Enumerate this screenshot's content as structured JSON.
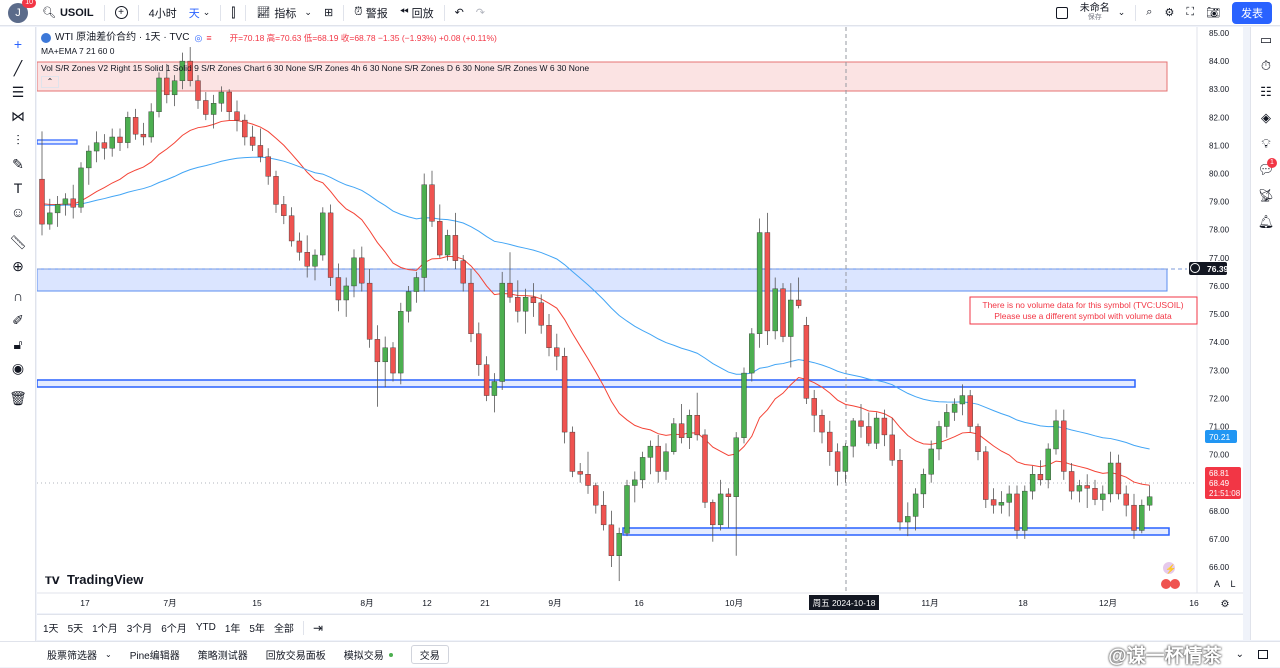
{
  "topbar": {
    "avatar_letter": "J",
    "avatar_badge": "10",
    "symbol": "USOIL",
    "add_symbol_label": "+",
    "interval_label": "4小时",
    "interval_active": "天",
    "indicators_label": "指标",
    "alerts_label": "警报",
    "replay_label": "回放",
    "layout_name": "未命名",
    "layout_status": "保存",
    "publish_label": "发表"
  },
  "legend": {
    "symbol_line": "WTI 原油差价合约 · 1天 · TVC",
    "ohlc_label": "开=70.18 高=70.63 低=68.19 收=68.78 −1.35 (−1.93%) +0.08 (+0.11%)",
    "ma_label": "MA+EMA 7 21 60 0",
    "indicator_label": "Vol S/R Zones V2 Right 15 Solid 1 Solid 9 S/R Zones Chart 6 30 None S/R Zones 4h 6 30 None S/R Zones D 6 30 None S/R Zones W 6 30 None"
  },
  "volume_warning": {
    "line1": "There is no volume data for this symbol (TVC:USOIL)",
    "line2": "Please use a different symbol with volume data"
  },
  "watermark": "TradingView",
  "price_labels": {
    "zone_price": "76.39",
    "ema60_price": "70.21",
    "last_close": "68.81",
    "last_price": "68.49",
    "countdown": "21:51:08"
  },
  "crosshair_date": "周五 2024-10-18",
  "range_buttons": [
    "1天",
    "5天",
    "1个月",
    "3个月",
    "6个月",
    "YTD",
    "1年",
    "5年",
    "全部"
  ],
  "bottom_tabs": [
    "股票筛选器",
    "Pine编辑器",
    "策略测试器",
    "回放交易面板",
    "模拟交易",
    "交易"
  ],
  "bottom_right_watermark": "@谋一杯情茶",
  "scale_labels": {
    "auto": "A",
    "log": "L"
  },
  "colors": {
    "up": "#22ab94",
    "down": "#f23645",
    "candle_up": "#4caf50",
    "candle_down": "#ef5350",
    "ema_short": "#f44336",
    "ema_long": "#42a5f5",
    "zone_red": "#f8d7d7",
    "zone_blue": "#dbe5ff",
    "accent": "#2962ff"
  },
  "chart_data": {
    "type": "candlestick",
    "y_axis_ticks": [
      "85.00",
      "84.00",
      "83.00",
      "82.00",
      "81.00",
      "80.00",
      "79.00",
      "78.00",
      "77.00",
      "76.00",
      "75.00",
      "74.00",
      "73.00",
      "72.00",
      "71.00",
      "70.00",
      "69.00",
      "68.00",
      "67.00",
      "66.00"
    ],
    "x_axis_ticks": [
      "17",
      "7月",
      "15",
      "8月",
      "12",
      "21",
      "9月",
      "16",
      "10月",
      "11月",
      "18",
      "12月",
      "16"
    ],
    "ylim": [
      65.3,
      85.2
    ],
    "candles": [
      [
        79.8,
        81.5,
        77.8,
        78.2
      ],
      [
        78.2,
        79.1,
        78.0,
        78.6
      ],
      [
        78.6,
        79.2,
        78.1,
        78.9
      ],
      [
        78.9,
        79.3,
        78.5,
        79.1
      ],
      [
        79.1,
        79.6,
        78.4,
        78.8
      ],
      [
        78.8,
        80.4,
        78.6,
        80.2
      ],
      [
        80.2,
        81.0,
        79.6,
        80.8
      ],
      [
        80.8,
        81.5,
        80.4,
        81.1
      ],
      [
        81.1,
        81.4,
        80.5,
        80.9
      ],
      [
        80.9,
        81.6,
        80.6,
        81.3
      ],
      [
        81.3,
        81.6,
        80.8,
        81.1
      ],
      [
        81.1,
        82.2,
        80.9,
        82.0
      ],
      [
        82.0,
        82.3,
        81.2,
        81.4
      ],
      [
        81.4,
        81.8,
        81.0,
        81.3
      ],
      [
        81.3,
        82.5,
        81.1,
        82.2
      ],
      [
        82.2,
        83.6,
        82.0,
        83.4
      ],
      [
        83.4,
        83.9,
        82.5,
        82.8
      ],
      [
        82.8,
        83.5,
        82.4,
        83.3
      ],
      [
        83.3,
        84.3,
        83.0,
        84.0
      ],
      [
        84.0,
        84.5,
        83.1,
        83.3
      ],
      [
        83.3,
        83.5,
        82.3,
        82.6
      ],
      [
        82.6,
        82.9,
        81.9,
        82.1
      ],
      [
        82.1,
        82.8,
        81.6,
        82.5
      ],
      [
        82.5,
        83.1,
        82.2,
        82.9
      ],
      [
        82.9,
        83.0,
        81.9,
        82.2
      ],
      [
        82.2,
        82.6,
        81.5,
        81.9
      ],
      [
        81.9,
        82.1,
        81.0,
        81.3
      ],
      [
        81.3,
        81.7,
        80.8,
        81.0
      ],
      [
        81.0,
        81.6,
        80.4,
        80.6
      ],
      [
        80.6,
        80.9,
        79.6,
        79.9
      ],
      [
        79.9,
        80.1,
        78.6,
        78.9
      ],
      [
        78.9,
        79.2,
        78.2,
        78.5
      ],
      [
        78.5,
        78.8,
        77.4,
        77.6
      ],
      [
        77.6,
        77.9,
        76.9,
        77.2
      ],
      [
        77.2,
        77.8,
        76.3,
        76.7
      ],
      [
        76.7,
        77.3,
        76.2,
        77.1
      ],
      [
        77.1,
        78.8,
        76.9,
        78.6
      ],
      [
        78.6,
        78.9,
        76.0,
        76.3
      ],
      [
        76.3,
        76.8,
        75.1,
        75.5
      ],
      [
        75.5,
        76.3,
        74.9,
        76.0
      ],
      [
        76.0,
        77.3,
        75.6,
        77.0
      ],
      [
        77.0,
        77.4,
        75.8,
        76.1
      ],
      [
        76.1,
        76.6,
        73.8,
        74.1
      ],
      [
        74.1,
        74.6,
        71.7,
        73.3
      ],
      [
        73.3,
        74.2,
        72.4,
        73.8
      ],
      [
        73.8,
        74.0,
        72.6,
        72.9
      ],
      [
        72.9,
        75.4,
        72.5,
        75.1
      ],
      [
        75.1,
        76.0,
        74.7,
        75.8
      ],
      [
        75.8,
        76.5,
        75.4,
        76.3
      ],
      [
        76.3,
        80.0,
        75.8,
        79.6
      ],
      [
        79.6,
        80.1,
        78.1,
        78.3
      ],
      [
        78.3,
        78.9,
        77.0,
        77.1
      ],
      [
        77.1,
        78.0,
        76.9,
        77.8
      ],
      [
        77.8,
        78.6,
        76.6,
        76.9
      ],
      [
        76.9,
        77.1,
        75.8,
        76.1
      ],
      [
        76.1,
        76.6,
        74.0,
        74.3
      ],
      [
        74.3,
        74.7,
        72.8,
        73.2
      ],
      [
        73.2,
        73.5,
        71.9,
        72.1
      ],
      [
        72.1,
        72.9,
        71.5,
        72.6
      ],
      [
        72.6,
        76.5,
        72.3,
        76.1
      ],
      [
        76.1,
        77.2,
        75.4,
        75.6
      ],
      [
        75.6,
        76.2,
        74.7,
        75.1
      ],
      [
        75.1,
        75.9,
        74.3,
        75.6
      ],
      [
        75.6,
        76.1,
        74.9,
        75.4
      ],
      [
        75.4,
        75.7,
        74.3,
        74.6
      ],
      [
        74.6,
        75.0,
        73.5,
        73.8
      ],
      [
        73.8,
        74.3,
        73.0,
        73.5
      ],
      [
        73.5,
        73.8,
        70.4,
        70.8
      ],
      [
        70.8,
        71.0,
        69.2,
        69.4
      ],
      [
        69.4,
        69.7,
        69.0,
        69.3
      ],
      [
        69.3,
        70.1,
        68.6,
        68.9
      ],
      [
        68.9,
        69.0,
        67.9,
        68.2
      ],
      [
        68.2,
        68.7,
        67.3,
        67.5
      ],
      [
        67.5,
        68.0,
        66.0,
        66.4
      ],
      [
        66.4,
        67.4,
        65.5,
        67.2
      ],
      [
        67.2,
        69.1,
        67.1,
        68.9
      ],
      [
        68.9,
        69.4,
        68.3,
        69.1
      ],
      [
        69.1,
        70.1,
        68.8,
        69.9
      ],
      [
        69.9,
        70.5,
        69.3,
        70.3
      ],
      [
        70.3,
        70.7,
        69.0,
        69.4
      ],
      [
        69.4,
        70.4,
        69.1,
        70.1
      ],
      [
        70.1,
        71.3,
        70.0,
        71.1
      ],
      [
        71.1,
        71.8,
        70.4,
        70.6
      ],
      [
        70.6,
        71.6,
        70.2,
        71.4
      ],
      [
        71.4,
        72.2,
        70.5,
        70.7
      ],
      [
        70.7,
        70.9,
        68.1,
        68.3
      ],
      [
        68.3,
        68.4,
        66.9,
        67.5
      ],
      [
        67.5,
        69.1,
        67.3,
        68.6
      ],
      [
        68.6,
        68.8,
        67.4,
        68.5
      ],
      [
        68.5,
        70.8,
        66.4,
        70.6
      ],
      [
        70.6,
        73.1,
        70.4,
        72.9
      ],
      [
        72.9,
        74.5,
        72.6,
        74.3
      ],
      [
        74.3,
        78.4,
        73.8,
        77.9
      ],
      [
        77.9,
        78.6,
        73.9,
        74.4
      ],
      [
        74.4,
        76.3,
        74.1,
        75.9
      ],
      [
        75.9,
        76.1,
        74.0,
        74.2
      ],
      [
        74.2,
        76.1,
        73.1,
        75.5
      ],
      [
        75.5,
        76.3,
        75.2,
        75.3
      ],
      [
        74.6,
        74.9,
        71.8,
        72.0
      ],
      [
        72.0,
        72.3,
        70.8,
        71.4
      ],
      [
        71.4,
        71.6,
        70.4,
        70.8
      ],
      [
        70.8,
        71.2,
        69.6,
        70.1
      ],
      [
        70.1,
        70.4,
        68.9,
        69.4
      ],
      [
        69.4,
        70.4,
        69.0,
        70.3
      ],
      [
        70.3,
        71.3,
        69.9,
        71.2
      ],
      [
        71.2,
        71.8,
        70.6,
        71.0
      ],
      [
        71.0,
        71.5,
        70.3,
        70.4
      ],
      [
        70.4,
        71.5,
        70.2,
        71.3
      ],
      [
        71.3,
        71.6,
        70.3,
        70.7
      ],
      [
        70.7,
        71.3,
        69.6,
        69.8
      ],
      [
        69.8,
        70.2,
        67.3,
        67.6
      ],
      [
        67.6,
        68.3,
        67.1,
        67.8
      ],
      [
        67.8,
        68.8,
        67.3,
        68.6
      ],
      [
        68.6,
        69.5,
        68.1,
        69.3
      ],
      [
        69.3,
        70.5,
        69.0,
        70.2
      ],
      [
        70.2,
        71.2,
        69.8,
        71.0
      ],
      [
        71.0,
        71.8,
        70.6,
        71.5
      ],
      [
        71.5,
        72.0,
        71.2,
        71.8
      ],
      [
        71.8,
        72.5,
        71.4,
        72.1
      ],
      [
        72.1,
        72.3,
        70.8,
        71.0
      ],
      [
        71.0,
        71.1,
        69.8,
        70.1
      ],
      [
        70.1,
        70.3,
        68.1,
        68.4
      ],
      [
        68.4,
        68.8,
        67.9,
        68.2
      ],
      [
        68.2,
        68.7,
        67.9,
        68.3
      ],
      [
        68.3,
        68.9,
        67.8,
        68.6
      ],
      [
        68.6,
        68.9,
        67.0,
        67.3
      ],
      [
        67.3,
        68.9,
        67.0,
        68.7
      ],
      [
        68.7,
        69.6,
        68.4,
        69.3
      ],
      [
        69.3,
        69.8,
        68.9,
        69.1
      ],
      [
        69.1,
        70.4,
        68.8,
        70.2
      ],
      [
        70.2,
        71.6,
        70.0,
        71.2
      ],
      [
        71.2,
        71.6,
        69.1,
        69.4
      ],
      [
        69.4,
        69.7,
        68.4,
        68.7
      ],
      [
        68.7,
        69.1,
        68.3,
        68.9
      ],
      [
        68.9,
        69.3,
        68.1,
        68.8
      ],
      [
        68.8,
        69.1,
        68.2,
        68.4
      ],
      [
        68.4,
        68.9,
        68.0,
        68.6
      ],
      [
        68.6,
        70.1,
        68.3,
        69.7
      ],
      [
        69.7,
        70.0,
        68.4,
        68.6
      ],
      [
        68.6,
        68.9,
        67.8,
        68.2
      ],
      [
        68.2,
        68.6,
        67.0,
        67.3
      ],
      [
        67.3,
        68.4,
        67.2,
        68.2
      ],
      [
        68.2,
        68.9,
        68.0,
        68.5
      ]
    ]
  }
}
